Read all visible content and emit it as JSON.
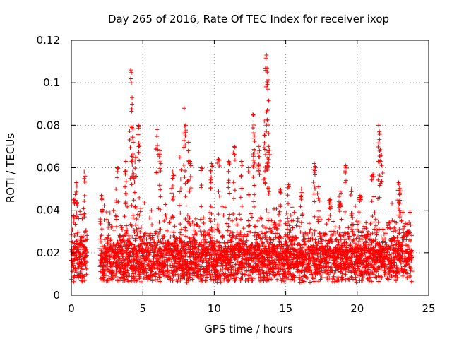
{
  "chart_data": {
    "type": "scatter",
    "title": "Day 265 of 2016, Rate Of TEC Index for receiver ixop",
    "xlabel": "GPS time / hours",
    "ylabel": "ROTI / TECUs",
    "xlim": [
      0,
      25
    ],
    "ylim": [
      0,
      0.12
    ],
    "grid": true,
    "marker": "+",
    "color": "#ff0000",
    "x_ticks": [
      {
        "value": 0,
        "label": "0"
      },
      {
        "value": 5,
        "label": "5"
      },
      {
        "value": 10,
        "label": "10"
      },
      {
        "value": 15,
        "label": "15"
      },
      {
        "value": 20,
        "label": "20"
      },
      {
        "value": 25,
        "label": "25"
      }
    ],
    "y_ticks": [
      {
        "value": 0,
        "label": "0"
      },
      {
        "value": 0.02,
        "label": "0.02"
      },
      {
        "value": 0.04,
        "label": "0.04"
      },
      {
        "value": 0.06,
        "label": "0.06"
      },
      {
        "value": 0.08,
        "label": "0.08"
      },
      {
        "value": 0.1,
        "label": "0.1"
      },
      {
        "value": 0.12,
        "label": "0.12"
      }
    ],
    "peaks": [
      {
        "x": 0.2,
        "y": 0.045
      },
      {
        "x": 0.35,
        "y": 0.053
      },
      {
        "x": 0.9,
        "y": 0.058
      },
      {
        "x": 2.1,
        "y": 0.047
      },
      {
        "x": 3.2,
        "y": 0.06
      },
      {
        "x": 3.8,
        "y": 0.063
      },
      {
        "x": 4.15,
        "y": 0.106
      },
      {
        "x": 4.2,
        "y": 0.1
      },
      {
        "x": 4.25,
        "y": 0.093
      },
      {
        "x": 4.3,
        "y": 0.074
      },
      {
        "x": 4.7,
        "y": 0.08
      },
      {
        "x": 4.5,
        "y": 0.065
      },
      {
        "x": 6.0,
        "y": 0.078
      },
      {
        "x": 6.2,
        "y": 0.068
      },
      {
        "x": 7.1,
        "y": 0.058
      },
      {
        "x": 7.6,
        "y": 0.065
      },
      {
        "x": 7.9,
        "y": 0.088
      },
      {
        "x": 8.0,
        "y": 0.08
      },
      {
        "x": 8.2,
        "y": 0.072
      },
      {
        "x": 8.3,
        "y": 0.063
      },
      {
        "x": 9.1,
        "y": 0.06
      },
      {
        "x": 9.8,
        "y": 0.062
      },
      {
        "x": 10.3,
        "y": 0.064
      },
      {
        "x": 11.0,
        "y": 0.063
      },
      {
        "x": 11.4,
        "y": 0.07
      },
      {
        "x": 11.9,
        "y": 0.063
      },
      {
        "x": 12.4,
        "y": 0.06
      },
      {
        "x": 12.7,
        "y": 0.085
      },
      {
        "x": 12.8,
        "y": 0.075
      },
      {
        "x": 13.1,
        "y": 0.07
      },
      {
        "x": 13.5,
        "y": 0.082
      },
      {
        "x": 13.65,
        "y": 0.113
      },
      {
        "x": 13.7,
        "y": 0.105
      },
      {
        "x": 13.75,
        "y": 0.097
      },
      {
        "x": 13.8,
        "y": 0.07
      },
      {
        "x": 14.6,
        "y": 0.05
      },
      {
        "x": 15.2,
        "y": 0.052
      },
      {
        "x": 16.1,
        "y": 0.05
      },
      {
        "x": 17.0,
        "y": 0.062
      },
      {
        "x": 17.3,
        "y": 0.051
      },
      {
        "x": 18.1,
        "y": 0.045
      },
      {
        "x": 18.8,
        "y": 0.049
      },
      {
        "x": 19.2,
        "y": 0.061
      },
      {
        "x": 19.6,
        "y": 0.05
      },
      {
        "x": 20.2,
        "y": 0.047
      },
      {
        "x": 21.1,
        "y": 0.057
      },
      {
        "x": 21.5,
        "y": 0.08
      },
      {
        "x": 21.55,
        "y": 0.077
      },
      {
        "x": 21.7,
        "y": 0.066
      },
      {
        "x": 22.9,
        "y": 0.053
      },
      {
        "x": 23.0,
        "y": 0.05
      },
      {
        "x": 23.5,
        "y": 0.03
      }
    ],
    "segments": [
      {
        "x_start": 0.0,
        "x_end": 1.1,
        "base": 0.018,
        "spread": 0.018
      },
      {
        "x_start": 2.0,
        "x_end": 23.85,
        "base": 0.016,
        "spread": 0.02
      }
    ]
  }
}
